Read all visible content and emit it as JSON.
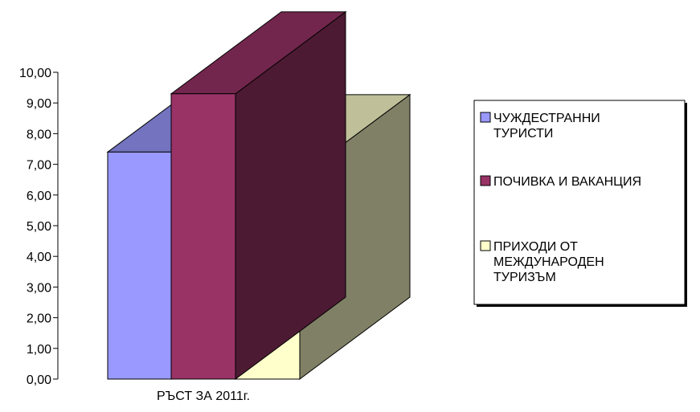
{
  "chart_data": {
    "type": "bar",
    "variant": "3d-clustered-column",
    "categories": [
      "РЪСТ ЗА 2011г."
    ],
    "series": [
      {
        "name": "ЧУЖДЕСТРАННИ ТУРИСТИ",
        "values": [
          7.4
        ],
        "color": "#9999FF"
      },
      {
        "name": "ПОЧИВКА И ВАКАНЦИЯ",
        "values": [
          9.3
        ],
        "color": "#993366"
      },
      {
        "name": "ПРИХОДИ ОТ МЕЖДУНАРОДЕН ТУРИЗЪМ",
        "values": [
          6.6
        ],
        "color": "#FFFFCC"
      }
    ],
    "y_ticks": [
      "0,00",
      "1,00",
      "2,00",
      "3,00",
      "4,00",
      "5,00",
      "6,00",
      "7,00",
      "8,00",
      "9,00",
      "10,00"
    ],
    "ylim": [
      0,
      10
    ],
    "title": "",
    "xlabel": "",
    "ylabel": "",
    "grid": false,
    "legend_position": "right"
  }
}
